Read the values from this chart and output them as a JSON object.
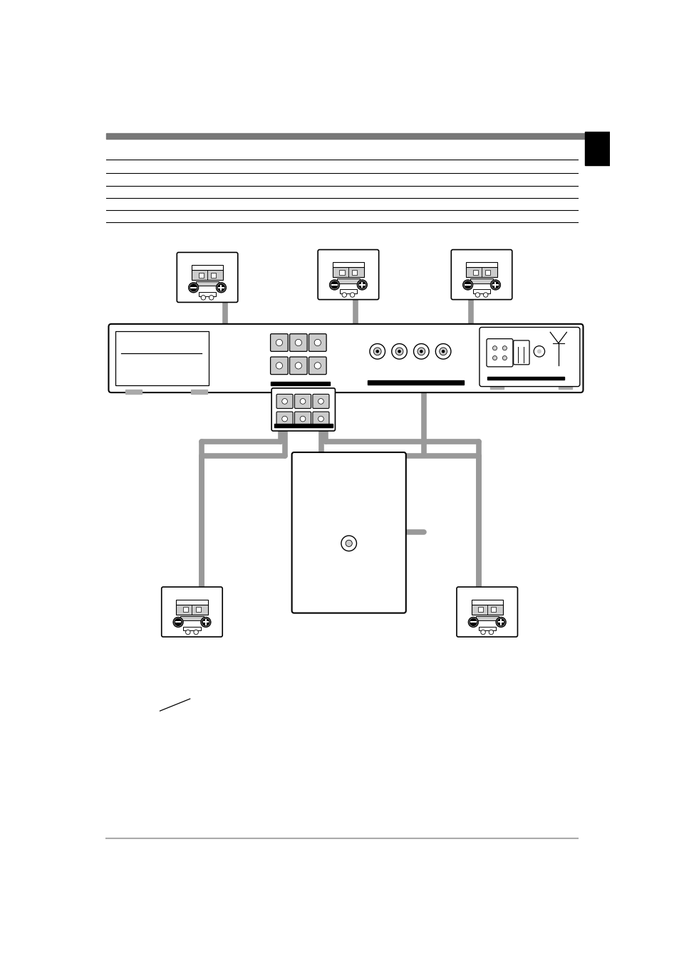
{
  "bg_color": "#ffffff",
  "line_color": "#000000",
  "wire_color": "#999999",
  "light_gray": "#cccccc",
  "dark_gray": "#555555",
  "header_bar_color": "#777777",
  "page_width": 9.54,
  "page_height": 13.52,
  "dpi": 100
}
